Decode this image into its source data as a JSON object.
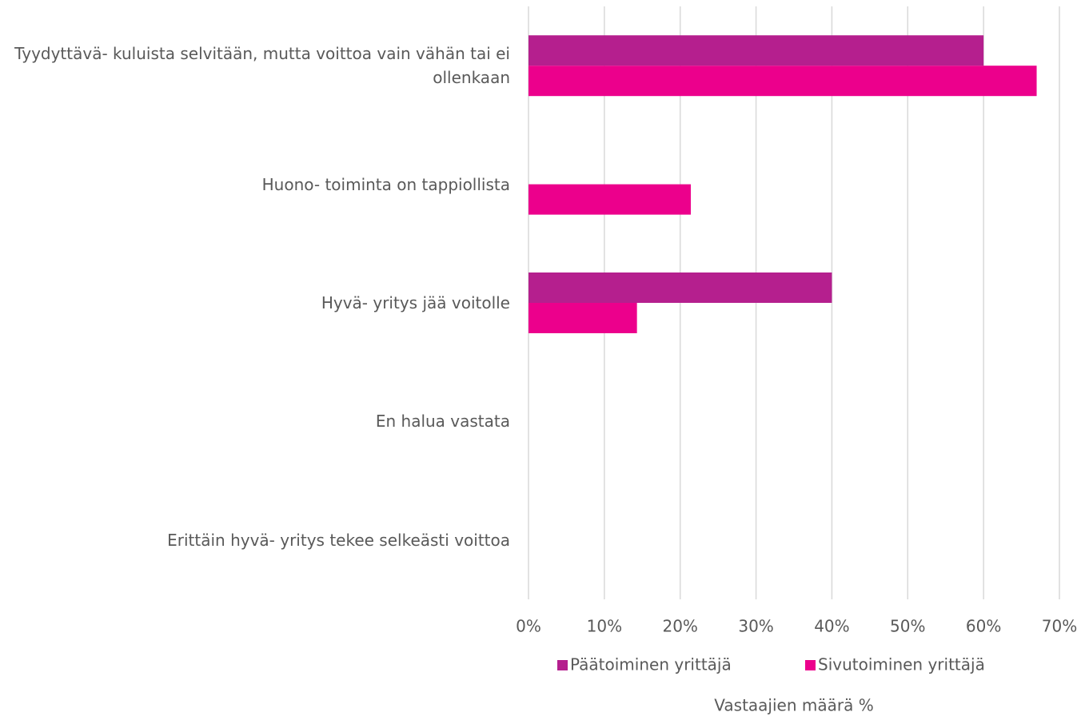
{
  "chart_data": {
    "type": "bar",
    "orientation": "horizontal",
    "categories": [
      "Tyydyttävä- kuluista selvitään, mutta voittoa vain vähän tai ei ollenkaan",
      "Huono- toiminta on tappiollista",
      "Hyvä- yritys jää voitolle",
      "En halua vastata",
      "Erittäin hyvä- yritys tekee selkeästi voittoa"
    ],
    "series": [
      {
        "name": "Päätoiminen yrittäjä",
        "color": "#b51f8e",
        "values": [
          60,
          0,
          40,
          0,
          0
        ]
      },
      {
        "name": "Sivutoiminen yrittäjä",
        "color": "#ec008c",
        "values": [
          67,
          21.4,
          14.3,
          0,
          0
        ]
      }
    ],
    "xlim": [
      0,
      70
    ],
    "xticks": [
      {
        "value": 0,
        "label": "0%"
      },
      {
        "value": 10,
        "label": "10%"
      },
      {
        "value": 20,
        "label": "20%"
      },
      {
        "value": 30,
        "label": "30%"
      },
      {
        "value": 40,
        "label": "40%"
      },
      {
        "value": 50,
        "label": "50%"
      },
      {
        "value": 60,
        "label": "60%"
      },
      {
        "value": 70,
        "label": "70%"
      }
    ],
    "x_label": "Vastaajien määrä %",
    "grid": true,
    "legend": "bottom"
  }
}
